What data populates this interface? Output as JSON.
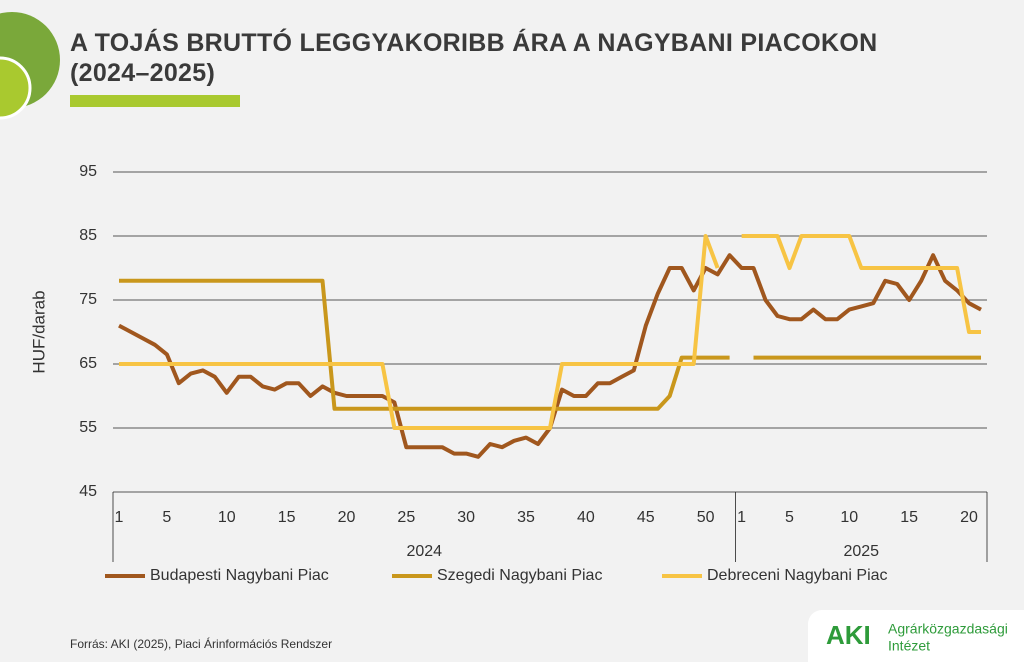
{
  "header": {
    "title": "A TOJÁS BRUTTÓ LEGGYAKORIBB ÁRA A NAGYBANI PIACOKON (2024–2025)"
  },
  "chart_data": {
    "type": "line",
    "y_label": "HUF/darab",
    "categories": [
      "1",
      null,
      null,
      null,
      "5",
      null,
      null,
      null,
      null,
      "10",
      null,
      null,
      null,
      null,
      "15",
      null,
      null,
      null,
      null,
      "20",
      null,
      null,
      null,
      null,
      "25",
      null,
      null,
      null,
      null,
      "30",
      null,
      null,
      null,
      null,
      "35",
      null,
      null,
      null,
      null,
      "40",
      null,
      null,
      null,
      null,
      "45",
      null,
      null,
      null,
      null,
      "50",
      null,
      null,
      "1",
      null,
      null,
      null,
      "5",
      null,
      null,
      null,
      null,
      "10",
      null,
      null,
      null,
      null,
      "15",
      null,
      null,
      null,
      null,
      "20",
      null
    ],
    "x_groups": [
      "2024",
      "2025"
    ],
    "ylim": [
      45,
      95
    ],
    "yticks": [
      45,
      55,
      65,
      75,
      85,
      95
    ],
    "grid": true,
    "legend": "bottom",
    "series": [
      {
        "name": "Budapesti Nagybani Piac",
        "color": "#a0571e",
        "values": [
          71,
          70,
          69,
          68,
          66.5,
          62,
          63.5,
          64,
          63,
          60.5,
          63,
          63,
          61.5,
          61,
          62,
          62,
          60,
          61.5,
          60.5,
          60,
          60,
          60,
          60,
          59,
          52,
          52,
          52,
          52,
          51,
          51,
          50.5,
          52.5,
          52,
          53,
          53.5,
          52.5,
          55,
          61,
          60,
          60,
          62,
          62,
          63,
          64,
          71,
          76,
          80,
          80,
          76.5,
          80,
          79,
          82,
          80,
          80,
          75,
          72.5,
          72,
          72,
          73.5,
          72,
          72,
          73.5,
          74,
          74.5,
          78,
          77.5,
          75,
          78,
          82,
          78,
          76.5,
          74.5,
          73.5
        ]
      },
      {
        "name": "Szegedi Nagybani Piac",
        "color": "#c9971c",
        "values": [
          78,
          78,
          78,
          78,
          78,
          78,
          78,
          78,
          78,
          78,
          78,
          78,
          78,
          78,
          78,
          78,
          78,
          78,
          58,
          58,
          58,
          58,
          58,
          58,
          58,
          58,
          58,
          58,
          58,
          58,
          58,
          58,
          58,
          58,
          58,
          58,
          58,
          58,
          58,
          58,
          58,
          58,
          58,
          58,
          58,
          58,
          60,
          66,
          66,
          66,
          66,
          66,
          null,
          66,
          66,
          66,
          66,
          66,
          66,
          66,
          66,
          66,
          66,
          66,
          66,
          66,
          66,
          66,
          66,
          66,
          66,
          66,
          66
        ]
      },
      {
        "name": "Debreceni Nagybani Piac",
        "color": "#f7c444",
        "values": [
          65,
          65,
          65,
          65,
          65,
          65,
          65,
          65,
          65,
          65,
          65,
          65,
          65,
          65,
          65,
          65,
          65,
          65,
          65,
          65,
          65,
          65,
          65,
          55,
          55,
          55,
          55,
          55,
          55,
          55,
          55,
          55,
          55,
          55,
          55,
          55,
          55,
          65,
          65,
          65,
          65,
          65,
          65,
          65,
          65,
          65,
          65,
          65,
          65,
          85,
          80,
          null,
          85,
          85,
          85,
          85,
          80,
          85,
          85,
          85,
          85,
          85,
          80,
          80,
          80,
          80,
          80,
          80,
          80,
          80,
          80,
          70,
          70
        ]
      }
    ]
  },
  "footer": {
    "source": "Forrás: AKI (2025), Piaci Árinformációs Rendszer",
    "logo_mark": "AKI",
    "logo_name": [
      "Agrárközgazdasági",
      "Intézet"
    ]
  }
}
